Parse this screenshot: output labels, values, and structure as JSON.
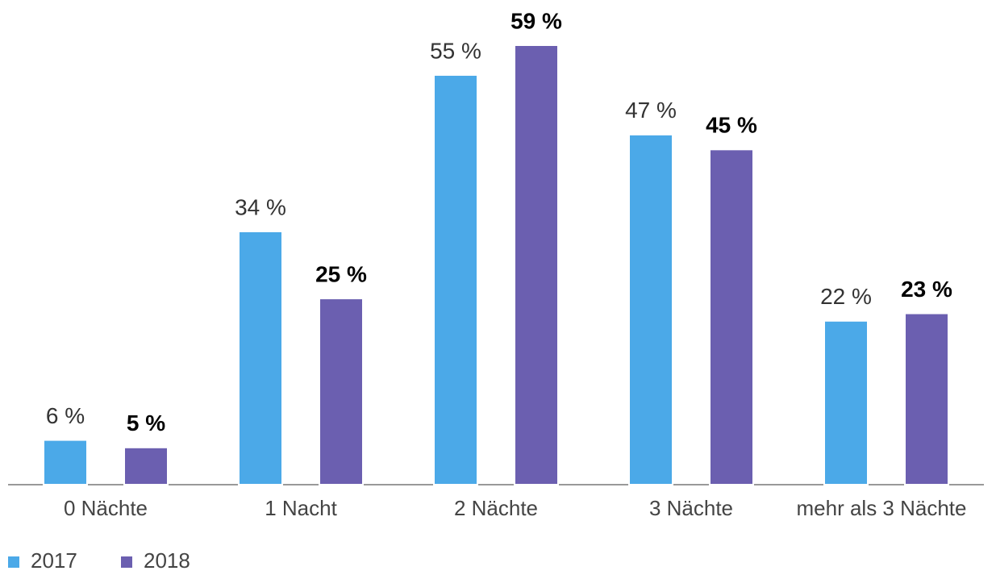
{
  "chart_data": {
    "type": "bar",
    "categories": [
      "0 Nächte",
      "1 Nacht",
      "2 Nächte",
      "3 Nächte",
      "mehr als 3 Nächte"
    ],
    "series": [
      {
        "name": "2017",
        "color": "#4ba9e8",
        "values": [
          6,
          34,
          55,
          47,
          22
        ],
        "value_labels": [
          "6 %",
          "34 %",
          "55 %",
          "47 %",
          "22 %"
        ]
      },
      {
        "name": "2018",
        "color": "#6b5fb0",
        "values": [
          5,
          25,
          59,
          45,
          23
        ],
        "value_labels": [
          "5 %",
          "25 %",
          "59 %",
          "45 %",
          "23 %"
        ]
      }
    ]
  }
}
